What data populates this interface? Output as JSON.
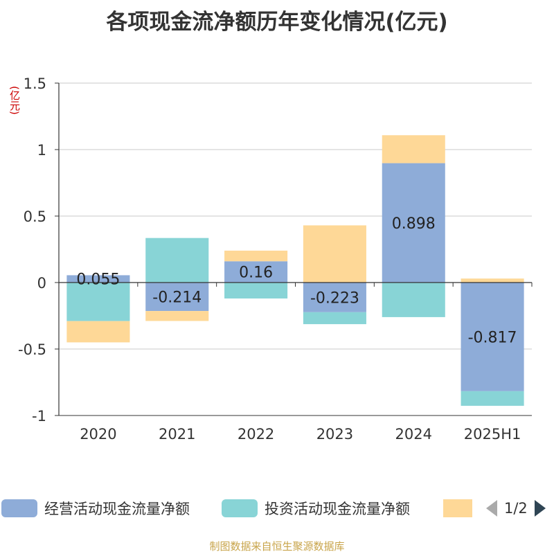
{
  "title": "各项现金流净额历年变化情况(亿元)",
  "y_unit": "(亿元)",
  "footer": "制图数据来自恒生聚源数据库",
  "legend": {
    "items": [
      {
        "label": "经营活动现金流量净额",
        "color": "#8eacd8"
      },
      {
        "label": "投资活动现金流量净额",
        "color": "#88d4d6"
      },
      {
        "label": "",
        "color": "#fed897"
      }
    ],
    "pager": "1/2",
    "prev_icon": "triangle-left-icon",
    "next_icon": "triangle-right-icon"
  },
  "chart_data": {
    "type": "bar",
    "stacked": true,
    "categories": [
      "2020",
      "2021",
      "2022",
      "2023",
      "2024",
      "2025H1"
    ],
    "ylim": [
      -1,
      1.5
    ],
    "yticks": [
      -1,
      -0.5,
      0,
      0.5,
      1,
      1.5
    ],
    "ytick_labels": [
      "-1",
      "-0.5",
      "0",
      "0.5",
      "1",
      "1.5"
    ],
    "grid": true,
    "legend_position": "bottom",
    "series": [
      {
        "name": "经营活动现金流量净额",
        "color": "#8eacd8",
        "values": [
          0.055,
          -0.214,
          0.16,
          -0.223,
          0.898,
          -0.817
        ],
        "labels": [
          "0.055",
          "-0.214",
          "0.16",
          "-0.223",
          "0.898",
          "-0.817"
        ]
      },
      {
        "name": "投资活动现金流量净额",
        "color": "#88d4d6",
        "values": [
          -0.29,
          0.335,
          -0.12,
          -0.09,
          -0.26,
          -0.11
        ],
        "labels": []
      },
      {
        "color": "#fed897",
        "values": [
          -0.16,
          -0.075,
          0.08,
          0.43,
          0.21,
          0.03
        ],
        "labels": []
      }
    ]
  }
}
